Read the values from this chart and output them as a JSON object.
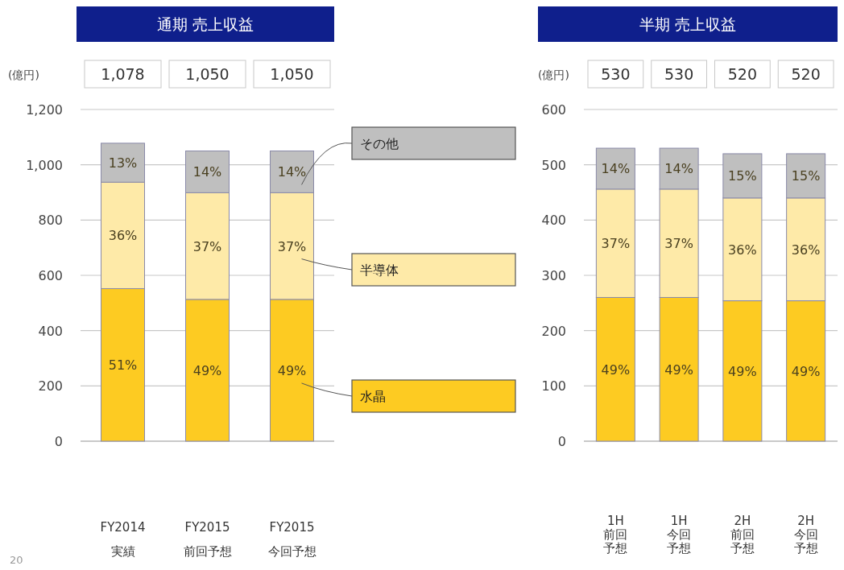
{
  "chart_data": [
    {
      "type": "bar",
      "title": "通期 売上収益",
      "ylabel": "(億円)",
      "categories": [
        "FY2014\n実績",
        "FY2015\n前回予想",
        "FY2015\n今回予想"
      ],
      "stacked": true,
      "ylim": [
        0,
        1200
      ],
      "yticks": [
        0,
        200,
        400,
        600,
        800,
        {
          "value": 1000,
          "label": "1,000"
        },
        {
          "value": 1200,
          "label": "1,200"
        }
      ],
      "grid": "y",
      "legend": "right",
      "series": [
        {
          "name": "水晶",
          "color": "#fdcb22",
          "values": [
            552,
            513,
            513
          ]
        },
        {
          "name": "半導体",
          "color": "#feeaa8",
          "values": [
            385,
            386,
            386
          ]
        },
        {
          "name": "その他",
          "color": "#bfbfbf",
          "values": [
            141,
            151,
            151
          ]
        }
      ],
      "annotations": [
        "1,078",
        "1,050",
        "1,050",
        "51%",
        "49%",
        "49%",
        "36%",
        "37%",
        "37%",
        "13%",
        "14%",
        "14%",
        "20"
      ]
    },
    {
      "type": "bar",
      "title": "半期 売上収益",
      "ylabel": "(億円)",
      "categories": [
        "1H前回予想",
        "1H今回予想",
        "2H前回予想",
        "2H今回予想"
      ],
      "stacked": true,
      "ylim": [
        0,
        600
      ],
      "yticks": [
        0,
        100,
        200,
        300,
        400,
        500,
        600
      ],
      "grid": "y",
      "series": [
        {
          "color": "#fdcb22",
          "values": [
            260,
            260,
            254,
            254
          ]
        },
        {
          "color": "#feeaa8",
          "values": [
            196,
            196,
            186,
            186
          ]
        },
        {
          "color": "#bfbfbf",
          "values": [
            74,
            74,
            80,
            80
          ]
        }
      ],
      "annotations": [
        "530",
        "530",
        "520",
        "520",
        "49%",
        "49%",
        "49%",
        "49%",
        "37%",
        "37%",
        "36%",
        "36%",
        "14%",
        "14%",
        "15%",
        "15%"
      ]
    }
  ]
}
